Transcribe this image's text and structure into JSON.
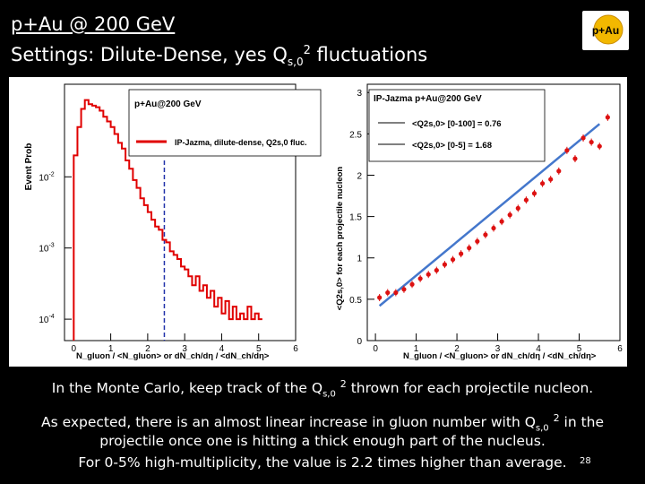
{
  "slide": {
    "title_line1": "p+Au @ 200 GeV",
    "title_line2_pre": "Settings:   Dilute-Dense, yes Q",
    "title_line2_sub": "s,0",
    "title_line2_sup": "2",
    "title_line2_post": " fluctuations",
    "logo_text": "p+Au",
    "caption1": "In the Monte Carlo, keep track of the Qs,0 2 thrown for each projectile nucleon.",
    "caption2a": "As expected, there is an almost linear increase in gluon number with Qs,0 2 in the",
    "caption2b": "projectile once one is hitting a thick enough part of the nucleus.",
    "caption2c": "For 0-5% high-multiplicity, the value is 2.2 times higher than average.",
    "slide_number": "28",
    "colors": {
      "background": "#000000",
      "hist_red": "#e00000",
      "marker_red": "#dd1111",
      "fit_blue": "#4477cc",
      "vline_blue": "#2233aa"
    }
  },
  "chart_data": [
    {
      "type": "line",
      "ylabel": "Event Prob",
      "xlabel": "N_gluon / <N_gluon> or dN_ch/dη / <dN_ch/dη>",
      "yscale": "log",
      "xlim": [
        -0.25,
        6.0
      ],
      "ylim": [
        5e-05,
        0.2
      ],
      "x_ticks": [
        "0",
        "1",
        "2",
        "3",
        "4",
        "5",
        "6"
      ],
      "y_ticks": [
        "10^-2",
        "10^-3",
        "10^-4"
      ],
      "legend": {
        "title": "p+Au@200 GeV",
        "entry": "IP-Jazma, dilute-dense, Q2s,0 fluc.",
        "placement": "top-right"
      },
      "vertical_line_x": 2.45,
      "series": [
        {
          "x": [
            0.0,
            0.1,
            0.2,
            0.3,
            0.4,
            0.5,
            0.6,
            0.7,
            0.8,
            0.9,
            1.0,
            1.1,
            1.2,
            1.3,
            1.4,
            1.5,
            1.6,
            1.7,
            1.8,
            1.9,
            2.0,
            2.1,
            2.2,
            2.3,
            2.4,
            2.5,
            2.6,
            2.7,
            2.8,
            2.9,
            3.0,
            3.1,
            3.2,
            3.3,
            3.4,
            3.5,
            3.6,
            3.7,
            3.8,
            3.9,
            4.0,
            4.1,
            4.2,
            4.3,
            4.4,
            4.5,
            4.6,
            4.7,
            4.8,
            4.9,
            5.0
          ],
          "y": [
            0.02,
            0.05,
            0.09,
            0.12,
            0.105,
            0.1,
            0.095,
            0.085,
            0.07,
            0.06,
            0.05,
            0.04,
            0.03,
            0.025,
            0.017,
            0.013,
            0.009,
            0.007,
            0.005,
            0.004,
            0.0032,
            0.0025,
            0.002,
            0.0018,
            0.0013,
            0.0012,
            0.0009,
            0.0008,
            0.0007,
            0.00055,
            0.0005,
            0.0004,
            0.0003,
            0.0004,
            0.00025,
            0.0003,
            0.0002,
            0.00025,
            0.00015,
            0.0002,
            0.00012,
            0.00018,
            0.0001,
            0.00015,
            0.0001,
            0.00012,
            0.0001,
            0.00015,
            0.0001,
            0.00012,
            0.0001
          ]
        }
      ]
    },
    {
      "type": "scatter",
      "title": "IP-Jazma p+Au@200 GeV",
      "ylabel": "<Q2s,0> for each projectile nucleon",
      "xlabel": "N_gluon / <N_gluon> or dN_ch/dη / <dN_ch/dη>",
      "xlim": [
        -0.2,
        6.0
      ],
      "ylim": [
        0,
        3.1
      ],
      "x_ticks": [
        "0",
        "1",
        "2",
        "3",
        "4",
        "5",
        "6"
      ],
      "y_ticks": [
        "0",
        "0.5",
        "1",
        "1.5",
        "2",
        "2.5",
        "3"
      ],
      "legend": [
        {
          "label": "<Q2s,0> [0-100] = 0.76"
        },
        {
          "label": "<Q2s,0> [0-5] = 1.68"
        }
      ],
      "points": {
        "x": [
          0.1,
          0.3,
          0.5,
          0.7,
          0.9,
          1.1,
          1.3,
          1.5,
          1.7,
          1.9,
          2.1,
          2.3,
          2.5,
          2.7,
          2.9,
          3.1,
          3.3,
          3.5,
          3.7,
          3.9,
          4.1,
          4.3,
          4.5,
          4.7,
          4.9,
          5.1,
          5.3,
          5.5,
          5.7
        ],
        "y": [
          0.52,
          0.58,
          0.58,
          0.62,
          0.68,
          0.75,
          0.8,
          0.85,
          0.92,
          0.98,
          1.05,
          1.12,
          1.2,
          1.28,
          1.36,
          1.44,
          1.52,
          1.6,
          1.7,
          1.78,
          1.9,
          1.95,
          2.05,
          2.3,
          2.2,
          2.45,
          2.4,
          2.35,
          2.7
        ]
      },
      "fit": {
        "x": [
          0.1,
          5.5
        ],
        "y": [
          0.42,
          2.62
        ]
      }
    }
  ]
}
